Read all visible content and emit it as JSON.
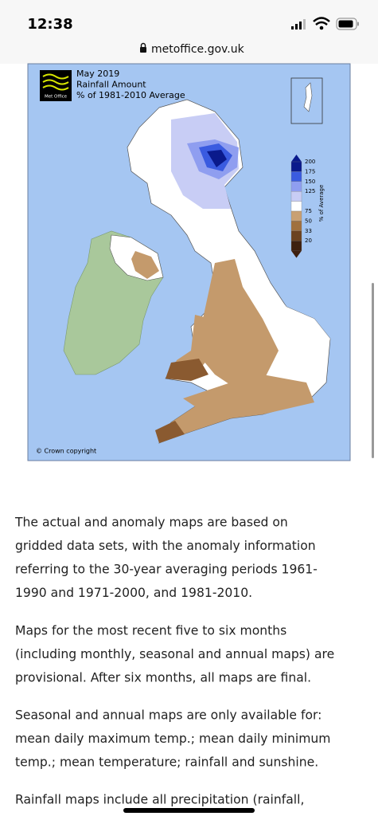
{
  "status_bar": {
    "time": "12:38"
  },
  "address_bar": {
    "url": "metoffice.gov.uk"
  },
  "map": {
    "logo": "Met Office",
    "title_lines": [
      "May 2019",
      "Rainfall Amount",
      "% of 1981-2010 Average"
    ],
    "legend": {
      "title": "% of Average",
      "labels": [
        "200",
        "175",
        "150",
        "125",
        "75",
        "50",
        "33",
        "20"
      ]
    },
    "copyright": "© Crown copyright"
  },
  "article": {
    "paragraphs": [
      {
        "lines": [
          "The actual and anomaly maps are based on",
          "gridded data sets, with the anomaly information",
          "referring to the 30-year averaging periods 1961-",
          "1990 and 1971-2000, and 1981-2010."
        ]
      },
      {
        "lines": [
          "Maps for the most recent five to six months",
          "(including monthly, seasonal and annual maps) are",
          "provisional. After six months, all maps are final."
        ]
      },
      {
        "lines": [
          "Seasonal and annual maps are only available for:",
          "mean daily maximum temp.; mean daily minimum",
          "temp.; mean temperature; rainfall and sunshine."
        ]
      },
      {
        "lines": [
          "Rainfall maps include all precipitation (rainfall,"
        ]
      }
    ]
  }
}
